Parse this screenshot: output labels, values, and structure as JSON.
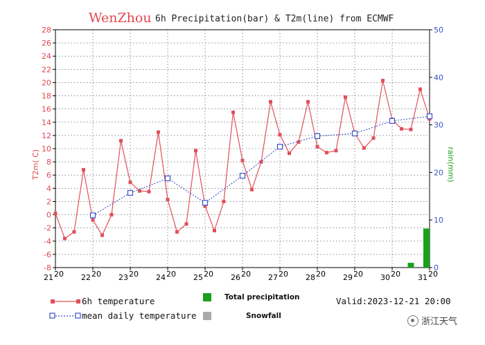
{
  "title": {
    "city": "WenZhou",
    "rest": "6h Precipitation(bar) & T2m(line) from ECMWF"
  },
  "legend": {
    "temp6h": "6h temperature",
    "mean": "mean daily temperature",
    "precip": "Total precipitation",
    "snow": "Snowfall",
    "valid": "Valid:2023-12-21 20:00"
  },
  "watermark": "浙江天气",
  "colors": {
    "temp6h": "#e0505a",
    "mean": "#3a50c8",
    "precip": "#1aa01a",
    "snow": "#aaaaaa",
    "left_axis": "#e2484f",
    "right_axis": "#3a50c8",
    "right_label": "#1aa01a"
  },
  "chart_data": {
    "type": "line",
    "ylabel": "T2m( C)",
    "y2label": "rain(mm)",
    "ylim": [
      -8,
      28
    ],
    "y_ticks": [
      -8,
      -6,
      -4,
      -2,
      0,
      2,
      4,
      6,
      8,
      10,
      12,
      14,
      16,
      18,
      20,
      22,
      24,
      26,
      28
    ],
    "y2lim": [
      0,
      50
    ],
    "y2_ticks": [
      0,
      10,
      20,
      30,
      40,
      50
    ],
    "x_ticks": [
      {
        "day": "21",
        "hour": "20"
      },
      {
        "day": "22",
        "hour": "20"
      },
      {
        "day": "23",
        "hour": "20"
      },
      {
        "day": "24",
        "hour": "20"
      },
      {
        "day": "25",
        "hour": "20"
      },
      {
        "day": "26",
        "hour": "20"
      },
      {
        "day": "27",
        "hour": "20"
      },
      {
        "day": "28",
        "hour": "20"
      },
      {
        "day": "29",
        "hour": "20"
      },
      {
        "day": "30",
        "hour": "20"
      },
      {
        "day": "31",
        "hour": "20"
      }
    ],
    "grid": true,
    "series": [
      {
        "name": "6h temperature",
        "x_step_hours": 6,
        "values": [
          0.2,
          -3.6,
          -2.6,
          6.8,
          -0.8,
          -3.1,
          0.0,
          11.2,
          4.9,
          3.6,
          3.5,
          12.5,
          2.3,
          -2.6,
          -1.4,
          9.7,
          1.3,
          -2.4,
          2.0,
          15.5,
          8.2,
          3.8,
          8.0,
          17.1,
          12.1,
          9.3,
          11.0,
          17.1,
          10.3,
          9.4,
          9.7,
          17.8,
          12.3,
          10.1,
          11.6,
          20.3,
          14.4,
          13.0,
          12.9,
          19.0,
          14.5
        ]
      },
      {
        "name": "mean daily temperature",
        "x_day_index": [
          1,
          2,
          3,
          4,
          5,
          6,
          7,
          8,
          9,
          10
        ],
        "values": [
          -0.1,
          3.3,
          5.5,
          1.8,
          5.9,
          10.3,
          11.9,
          12.3,
          14.2,
          14.9
        ]
      }
    ],
    "precipitation_bars": [
      {
        "x_step_index": 38,
        "value_mm": 1.0
      },
      {
        "x_step_index": 40,
        "value_mm": 8.2
      }
    ]
  }
}
